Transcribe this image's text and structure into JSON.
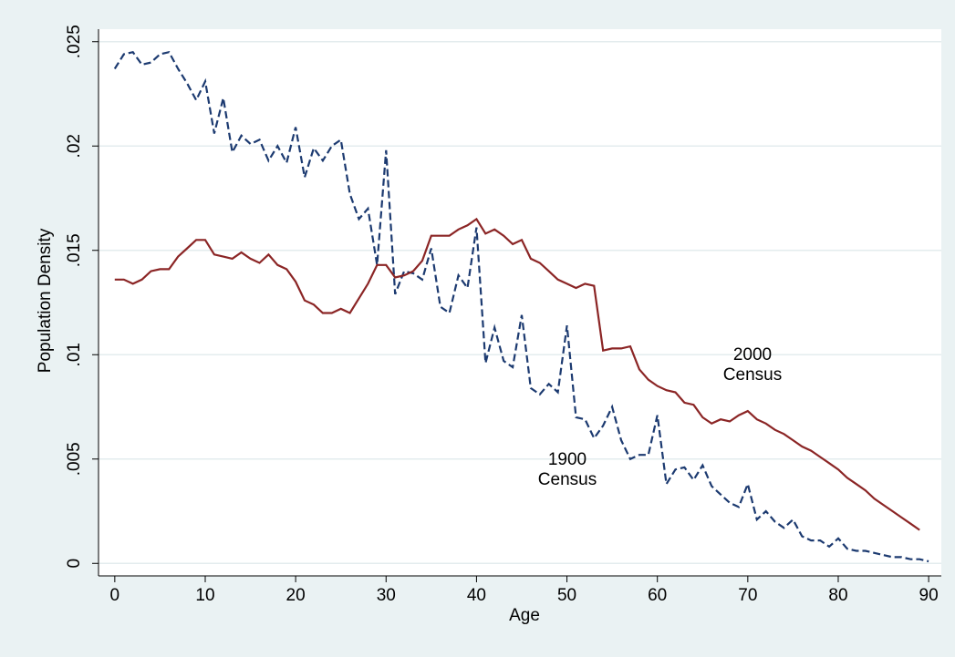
{
  "chart_data": {
    "type": "line",
    "xlabel": "Age",
    "ylabel": "Population Density",
    "x": [
      0,
      1,
      2,
      3,
      4,
      5,
      6,
      7,
      8,
      9,
      10,
      11,
      12,
      13,
      14,
      15,
      16,
      17,
      18,
      19,
      20,
      21,
      22,
      23,
      24,
      25,
      26,
      27,
      28,
      29,
      30,
      31,
      32,
      33,
      34,
      35,
      36,
      37,
      38,
      39,
      40,
      41,
      42,
      43,
      44,
      45,
      46,
      47,
      48,
      49,
      50,
      51,
      52,
      53,
      54,
      55,
      56,
      57,
      58,
      59,
      60,
      61,
      62,
      63,
      64,
      65,
      66,
      67,
      68,
      69,
      70,
      71,
      72,
      73,
      74,
      75,
      76,
      77,
      78,
      79,
      80,
      81,
      82,
      83,
      84,
      85,
      86,
      87,
      88,
      89,
      90
    ],
    "series": [
      {
        "color": "#1c3a70",
        "dash": true,
        "values": [
          0.0237,
          0.0244,
          0.0245,
          0.0239,
          0.024,
          0.0244,
          0.0245,
          0.0237,
          0.023,
          0.0222,
          0.0231,
          0.0206,
          0.0223,
          0.0197,
          0.0205,
          0.0201,
          0.0203,
          0.0193,
          0.02,
          0.0192,
          0.0209,
          0.0185,
          0.0199,
          0.0193,
          0.02,
          0.0203,
          0.0177,
          0.0165,
          0.017,
          0.0143,
          0.0198,
          0.0129,
          0.014,
          0.0139,
          0.0136,
          0.0151,
          0.0123,
          0.012,
          0.0138,
          0.0132,
          0.0161,
          0.0096,
          0.0113,
          0.0097,
          0.0094,
          0.0119,
          0.0084,
          0.0081,
          0.0086,
          0.0082,
          0.0114,
          0.007,
          0.0069,
          0.006,
          0.0066,
          0.0075,
          0.0059,
          0.005,
          0.0052,
          0.0052,
          0.0071,
          0.0038,
          0.0045,
          0.0046,
          0.004,
          0.0047,
          0.0037,
          0.0033,
          0.0029,
          0.0027,
          0.0038,
          0.0021,
          0.0025,
          0.002,
          0.0017,
          0.0021,
          0.0013,
          0.0011,
          0.0011,
          0.0008,
          0.0012,
          0.0007,
          0.0006,
          0.0006,
          0.0005,
          0.0004,
          0.0003,
          0.0003,
          0.0002,
          0.0002,
          0.0001
        ]
      },
      {
        "color": "#8b2525",
        "dash": false,
        "values": [
          0.0136,
          0.0136,
          0.0134,
          0.0136,
          0.014,
          0.0141,
          0.0141,
          0.0147,
          0.0151,
          0.0155,
          0.0155,
          0.0148,
          0.0147,
          0.0146,
          0.0149,
          0.0146,
          0.0144,
          0.0148,
          0.0143,
          0.0141,
          0.0135,
          0.0126,
          0.0124,
          0.012,
          0.012,
          0.0122,
          0.012,
          0.0127,
          0.0134,
          0.0143,
          0.0143,
          0.0137,
          0.0138,
          0.014,
          0.0145,
          0.0157,
          0.0157,
          0.0157,
          0.016,
          0.0162,
          0.0165,
          0.0158,
          0.016,
          0.0157,
          0.0153,
          0.0155,
          0.0146,
          0.0144,
          0.014,
          0.0136,
          0.0134,
          0.0132,
          0.0134,
          0.0133,
          0.0102,
          0.0103,
          0.0103,
          0.0104,
          0.0093,
          0.0088,
          0.0085,
          0.0083,
          0.0082,
          0.0077,
          0.0076,
          0.007,
          0.0067,
          0.0069,
          0.0068,
          0.0071,
          0.0073,
          0.0069,
          0.0067,
          0.0064,
          0.0062,
          0.0059,
          0.0056,
          0.0054,
          0.0051,
          0.0048,
          0.0045,
          0.0041,
          0.0038,
          0.0035,
          0.0031,
          0.0028,
          0.0025,
          0.0022,
          0.0019,
          0.0016,
          null
        ]
      }
    ],
    "annotations": [
      {
        "lines": [
          "2000",
          "Census"
        ]
      },
      {
        "lines": [
          "1900",
          "Census"
        ]
      }
    ],
    "xlim": [
      -1.8,
      91.4
    ],
    "xticks": [
      0,
      10,
      20,
      30,
      40,
      50,
      60,
      70,
      80,
      90
    ],
    "ylim": [
      -0.0006,
      0.0256
    ],
    "yticks": [
      0,
      {
        "value": 0.005,
        "label": ".005"
      },
      {
        "value": 0.01,
        "label": ".01"
      },
      {
        "value": 0.015,
        "label": ".015"
      },
      {
        "value": 0.02,
        "label": ".02"
      },
      {
        "value": 0.025,
        "label": ".025"
      }
    ],
    "grid": true
  }
}
